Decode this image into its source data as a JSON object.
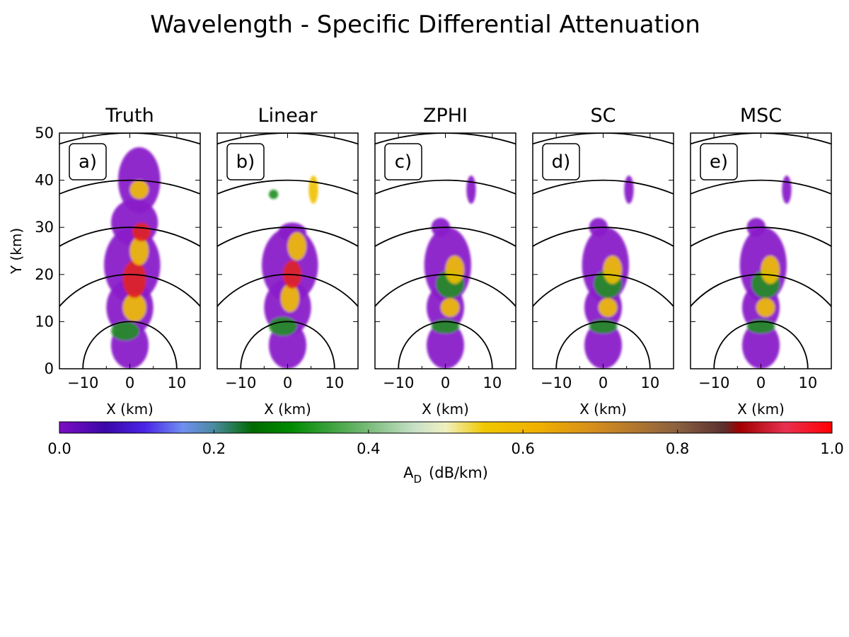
{
  "figure": {
    "title": "Wavelength - Specific Differential Attenuation"
  },
  "chart_data": {
    "type": "heatmap",
    "title": "Wavelength - Specific Differential Attenuation",
    "xlabel": "X (km)",
    "ylabel": "Y (km)",
    "xlim": [
      -15,
      15
    ],
    "ylim": [
      0,
      50
    ],
    "xticks": [
      "−10",
      "0",
      "10"
    ],
    "yticks": [
      "0",
      "10",
      "20",
      "30",
      "40",
      "50"
    ],
    "range_rings_km": [
      10,
      20,
      30,
      40,
      50
    ],
    "grid": false,
    "panels": [
      {
        "label": "a)",
        "title": "Truth"
      },
      {
        "label": "b)",
        "title": "Linear"
      },
      {
        "label": "c)",
        "title": "ZPHI"
      },
      {
        "label": "d)",
        "title": "SC"
      },
      {
        "label": "e)",
        "title": "MSC"
      }
    ],
    "colorbar": {
      "label_main": "A",
      "label_sub": "D",
      "label_unit": "(dB/km)",
      "range": [
        0.0,
        1.0
      ],
      "ticks": [
        "0.0",
        "0.2",
        "0.4",
        "0.6",
        "0.8",
        "1.0"
      ],
      "stops": [
        [
          0.0,
          "#7b0ec2"
        ],
        [
          0.06,
          "#3a07a8"
        ],
        [
          0.11,
          "#4a24e6"
        ],
        [
          0.16,
          "#6f8ff0"
        ],
        [
          0.2,
          "#4a8aa0"
        ],
        [
          0.25,
          "#006a00"
        ],
        [
          0.3,
          "#008a00"
        ],
        [
          0.38,
          "#60b060"
        ],
        [
          0.46,
          "#c8e0c8"
        ],
        [
          0.5,
          "#f0f0c0"
        ],
        [
          0.55,
          "#f0c800"
        ],
        [
          0.62,
          "#f0b000"
        ],
        [
          0.7,
          "#d08a20"
        ],
        [
          0.8,
          "#8a6040"
        ],
        [
          0.86,
          "#5a3030"
        ],
        [
          0.88,
          "#a00000"
        ],
        [
          0.94,
          "#e83050"
        ],
        [
          1.0,
          "#ff0000"
        ]
      ]
    },
    "colors": {
      "background_field": "#8a1fc9",
      "moderate": "#1f8f1f",
      "high": "#f0c000",
      "extreme": "#e02020"
    }
  }
}
